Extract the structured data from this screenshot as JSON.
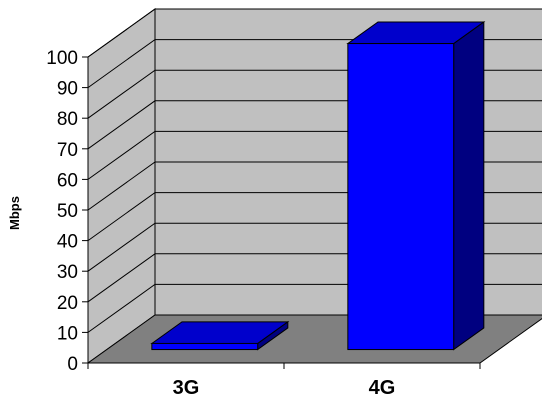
{
  "chart_data": {
    "type": "bar",
    "style": "3d-column",
    "categories": [
      "3G",
      "4G"
    ],
    "values": [
      2,
      100
    ],
    "ylabel": "Mbps",
    "xlabel": "",
    "title": "",
    "ylim": [
      0,
      100
    ],
    "yticks": [
      0,
      10,
      20,
      30,
      40,
      50,
      60,
      70,
      80,
      90,
      100
    ],
    "grid": true,
    "legend": "none",
    "colors": {
      "bar_front": "#0000FF",
      "bar_top": "#0000CC",
      "bar_side": "#000080",
      "back_wall": "#C0C0C0",
      "side_wall": "#C0C0C0",
      "floor": "#808080"
    }
  }
}
